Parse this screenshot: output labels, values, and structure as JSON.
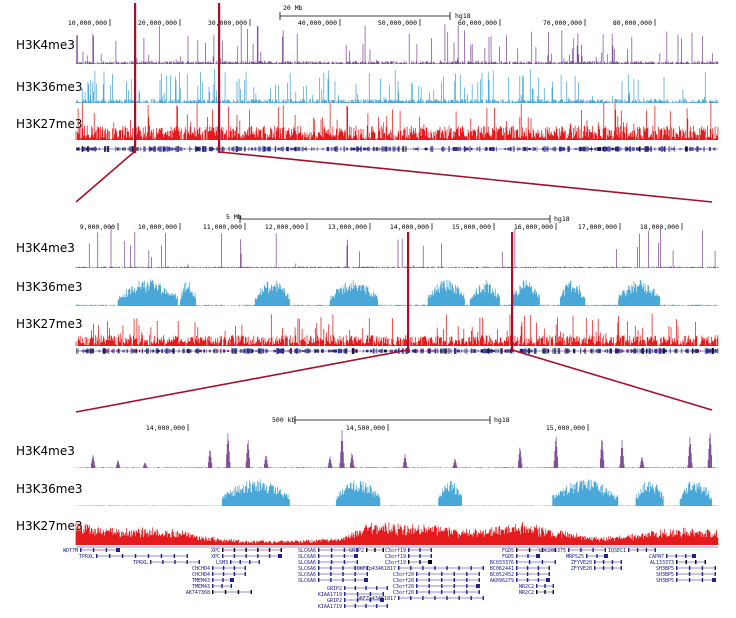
{
  "track_names": [
    "H3K4me3",
    "H3K36me3",
    "H3K27me3"
  ],
  "colors": {
    "h3k4me3": "#7f4f9a",
    "h3k36me3": "#4aa8d8",
    "h3k27me3": "#e41a1c",
    "genes": "#22228c",
    "connector": "#a50f2a"
  },
  "panels": [
    {
      "scale_label": "20 Mb",
      "assembly": "hg18",
      "coords": [
        "10,000,000",
        "20,000,000",
        "30,000,000",
        "40,000,000",
        "50,000,000",
        "60,000,000",
        "70,000,000",
        "80,000,000"
      ]
    },
    {
      "scale_label": "5 Mb",
      "assembly": "hg18",
      "coords": [
        "9,000,000",
        "10,000,000",
        "11,000,000",
        "12,000,000",
        "13,000,000",
        "14,000,000",
        "15,000,000",
        "16,000,000",
        "17,000,000",
        "18,000,000"
      ]
    },
    {
      "scale_label": "500 kb",
      "assembly": "hg18",
      "coords": [
        "14,000,000",
        "14,500,000",
        "15,000,000"
      ]
    }
  ],
  "genes": [
    {
      "label": "WDT7M"
    },
    {
      "label": "TPRXL"
    },
    {
      "label": "TPRXL"
    },
    {
      "label": "XPC"
    },
    {
      "label": "XPC"
    },
    {
      "label": "LSM3"
    },
    {
      "label": "CHCHD4"
    },
    {
      "label": "CHCHD4"
    },
    {
      "label": "TMEM43"
    },
    {
      "label": "TMEM43"
    },
    {
      "label": "AK747368"
    },
    {
      "label": "SLC6A6"
    },
    {
      "label": "SLC6A6"
    },
    {
      "label": "SLC6A6"
    },
    {
      "label": "SLC6A6"
    },
    {
      "label": "SLC6A6"
    },
    {
      "label": "SLC6A6"
    },
    {
      "label": "GRIP2"
    },
    {
      "label": "GRIP2"
    },
    {
      "label": "KIAA1719"
    },
    {
      "label": "GRIP2"
    },
    {
      "label": "KIAA1719"
    },
    {
      "label": "C3orf19"
    },
    {
      "label": "C3orf19"
    },
    {
      "label": "C3orf19"
    },
    {
      "label": "DKFZp434K1817"
    },
    {
      "label": "C3orf20"
    },
    {
      "label": "C3orf20"
    },
    {
      "label": "C3orf20"
    },
    {
      "label": "C3orf20"
    },
    {
      "label": "DKFZp434K1817"
    },
    {
      "label": "FGD5"
    },
    {
      "label": "FGD5"
    },
    {
      "label": "BC033376"
    },
    {
      "label": "BC062441"
    },
    {
      "label": "BC052452"
    },
    {
      "label": "AK096279"
    },
    {
      "label": "NR2C2"
    },
    {
      "label": "NR2C2"
    },
    {
      "label": "LOC285375"
    },
    {
      "label": "MRPS25"
    },
    {
      "label": "ZFYVE20"
    },
    {
      "label": "ZFYVE20"
    },
    {
      "label": "IQSEC1"
    },
    {
      "label": "CAPN7"
    },
    {
      "label": "AL133373"
    },
    {
      "label": "SH3BP5"
    },
    {
      "label": "SH3BP5"
    },
    {
      "label": "SH3BP5"
    }
  ]
}
